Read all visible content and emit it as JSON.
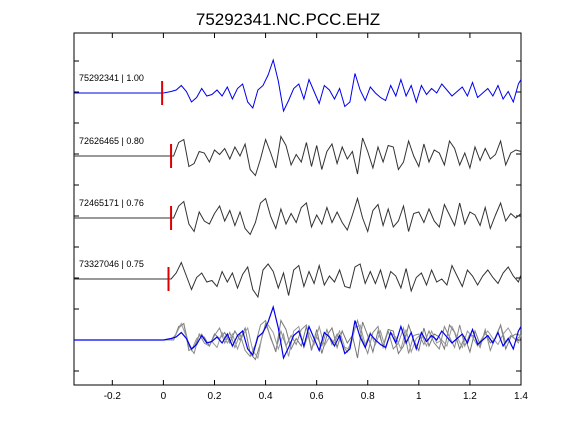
{
  "chart_data": {
    "type": "line",
    "title": "75292341.NC.PCC.EHZ",
    "xlabel": "",
    "ylabel": "",
    "xlim": [
      -0.35,
      1.4
    ],
    "x_ticks": [
      "-0.2",
      "0",
      "0.2",
      "0.4",
      "0.6",
      "0.8",
      "1",
      "1.2",
      "1.4"
    ],
    "x_tick_values": [
      -0.2,
      0,
      0.2,
      0.4,
      0.6,
      0.8,
      1.0,
      1.2,
      1.4
    ],
    "grid": false,
    "colors": {
      "master": "#0000ee",
      "other": "#333333",
      "pick": "#dd0000",
      "overlay_gray": "#777777"
    },
    "series": [
      {
        "name": "75292341 | 1.00",
        "color": "#0000ee",
        "pick_time": -0.005,
        "x": [
          -0.35,
          0.0,
          0.03,
          0.05,
          0.07,
          0.09,
          0.11,
          0.13,
          0.15,
          0.17,
          0.19,
          0.21,
          0.23,
          0.25,
          0.27,
          0.29,
          0.31,
          0.33,
          0.35,
          0.37,
          0.39,
          0.41,
          0.43,
          0.45,
          0.47,
          0.49,
          0.51,
          0.53,
          0.55,
          0.57,
          0.59,
          0.61,
          0.63,
          0.65,
          0.67,
          0.69,
          0.71,
          0.73,
          0.75,
          0.77,
          0.79,
          0.81,
          0.83,
          0.85,
          0.87,
          0.89,
          0.91,
          0.93,
          0.95,
          0.97,
          0.99,
          1.01,
          1.03,
          1.05,
          1.07,
          1.09,
          1.11,
          1.13,
          1.15,
          1.17,
          1.19,
          1.21,
          1.23,
          1.25,
          1.27,
          1.29,
          1.31,
          1.33,
          1.35,
          1.37,
          1.39,
          1.4
        ],
        "y": [
          0,
          0,
          0.1,
          0.2,
          0.5,
          0.1,
          -0.6,
          -0.3,
          0.3,
          -0.2,
          -0.1,
          0.2,
          -0.2,
          0.4,
          -0.4,
          0.3,
          0.6,
          -0.6,
          -1.0,
          0.2,
          0.5,
          1.2,
          2.2,
          0.8,
          -1.2,
          -0.5,
          0.3,
          0.6,
          -0.4,
          0.9,
          0.1,
          -0.7,
          0.5,
          0.2,
          -0.4,
          0.3,
          -0.9,
          -0.6,
          1.3,
          0.2,
          -0.5,
          0.4,
          0.0,
          -0.3,
          -0.5,
          0.5,
          -0.2,
          0.9,
          -0.2,
          0.5,
          -0.6,
          0.5,
          -0.1,
          0.3,
          0.0,
          0.6,
          0.2,
          -0.2,
          0.1,
          0.4,
          -0.2,
          0.7,
          -0.3,
          0.0,
          0.3,
          -0.2,
          0.5,
          -0.4,
          0.1,
          -0.6,
          0.6,
          0.9
        ]
      },
      {
        "name": "72626465 | 0.80",
        "color": "#333333",
        "pick_time": 0.03,
        "x": [
          -0.35,
          0.04,
          0.06,
          0.08,
          0.1,
          0.12,
          0.14,
          0.16,
          0.18,
          0.2,
          0.22,
          0.24,
          0.26,
          0.28,
          0.3,
          0.32,
          0.34,
          0.36,
          0.38,
          0.4,
          0.42,
          0.44,
          0.46,
          0.48,
          0.5,
          0.52,
          0.54,
          0.56,
          0.58,
          0.6,
          0.62,
          0.64,
          0.66,
          0.68,
          0.7,
          0.72,
          0.74,
          0.76,
          0.78,
          0.8,
          0.82,
          0.84,
          0.86,
          0.88,
          0.9,
          0.92,
          0.94,
          0.96,
          0.98,
          1.0,
          1.02,
          1.04,
          1.06,
          1.08,
          1.1,
          1.12,
          1.14,
          1.16,
          1.18,
          1.2,
          1.22,
          1.24,
          1.26,
          1.28,
          1.3,
          1.32,
          1.34,
          1.36,
          1.38,
          1.4
        ],
        "y": [
          0,
          0,
          0.9,
          1.1,
          -0.7,
          -0.5,
          0.3,
          0.2,
          -0.4,
          0.4,
          0.1,
          0.5,
          -0.2,
          0.6,
          0.0,
          0.8,
          -0.9,
          -1.3,
          -0.2,
          1.1,
          0.2,
          -0.8,
          1.3,
          0.7,
          -0.6,
          0.1,
          -0.4,
          0.9,
          -0.7,
          0.7,
          -0.9,
          0.3,
          0.8,
          -0.5,
          0.6,
          -0.2,
          0.3,
          -1.2,
          1.2,
          0.3,
          -0.8,
          0.6,
          -0.4,
          0.7,
          0.6,
          -0.9,
          -0.4,
          1.0,
          0.0,
          -0.7,
          0.8,
          -0.4,
          0.4,
          0.2,
          -0.6,
          1.0,
          0.5,
          -0.6,
          0.2,
          -0.8,
          0.6,
          -0.3,
          0.5,
          -0.2,
          0.1,
          1.0,
          -0.6,
          0.2,
          0.4,
          0.3
        ]
      },
      {
        "name": "72465171 | 0.76",
        "color": "#333333",
        "pick_time": 0.03,
        "x": [
          -0.35,
          0.04,
          0.06,
          0.08,
          0.1,
          0.12,
          0.14,
          0.16,
          0.18,
          0.2,
          0.22,
          0.24,
          0.26,
          0.28,
          0.3,
          0.32,
          0.34,
          0.36,
          0.38,
          0.4,
          0.42,
          0.44,
          0.46,
          0.48,
          0.5,
          0.52,
          0.54,
          0.56,
          0.58,
          0.6,
          0.62,
          0.64,
          0.66,
          0.68,
          0.7,
          0.72,
          0.74,
          0.76,
          0.78,
          0.8,
          0.82,
          0.84,
          0.86,
          0.88,
          0.9,
          0.92,
          0.94,
          0.96,
          0.98,
          1.0,
          1.02,
          1.04,
          1.06,
          1.08,
          1.1,
          1.12,
          1.14,
          1.16,
          1.18,
          1.2,
          1.22,
          1.24,
          1.26,
          1.28,
          1.3,
          1.32,
          1.34,
          1.36,
          1.38,
          1.4
        ],
        "y": [
          0,
          0,
          0.8,
          1.1,
          -0.4,
          -0.9,
          0.4,
          -0.2,
          -0.4,
          0.3,
          0.8,
          -0.2,
          0.5,
          -0.5,
          0.4,
          -0.7,
          -1.1,
          -0.3,
          1.0,
          1.3,
          0.1,
          -0.7,
          0.6,
          -0.4,
          0.3,
          -0.3,
          0.7,
          1.0,
          -0.6,
          0.2,
          -0.4,
          0.7,
          -0.3,
          0.4,
          -0.3,
          -0.8,
          0.2,
          1.3,
          0.0,
          -0.9,
          0.5,
          0.9,
          -0.5,
          0.6,
          -0.6,
          -0.2,
          0.8,
          -0.9,
          0.3,
          0.4,
          -0.3,
          0.6,
          -0.2,
          -0.6,
          0.9,
          0.2,
          -0.5,
          1.0,
          -0.4,
          0.4,
          0.2,
          -0.5,
          0.7,
          -0.7,
          0.2,
          1.0,
          -0.2,
          0.3,
          0.0,
          0.3
        ]
      },
      {
        "name": "73327046 | 0.75",
        "color": "#333333",
        "pick_time": 0.02,
        "x": [
          -0.35,
          0.03,
          0.05,
          0.07,
          0.09,
          0.11,
          0.13,
          0.15,
          0.17,
          0.19,
          0.21,
          0.23,
          0.25,
          0.27,
          0.29,
          0.31,
          0.33,
          0.35,
          0.37,
          0.39,
          0.41,
          0.43,
          0.45,
          0.47,
          0.49,
          0.51,
          0.53,
          0.55,
          0.57,
          0.59,
          0.61,
          0.63,
          0.65,
          0.67,
          0.69,
          0.71,
          0.73,
          0.75,
          0.77,
          0.79,
          0.81,
          0.83,
          0.85,
          0.87,
          0.89,
          0.91,
          0.93,
          0.95,
          0.97,
          0.99,
          1.01,
          1.03,
          1.05,
          1.07,
          1.09,
          1.11,
          1.13,
          1.15,
          1.17,
          1.19,
          1.21,
          1.23,
          1.25,
          1.27,
          1.29,
          1.31,
          1.33,
          1.35,
          1.37,
          1.39,
          1.4
        ],
        "y": [
          0,
          0,
          0.4,
          1.1,
          0.2,
          -0.7,
          0.1,
          0.4,
          -0.2,
          -0.1,
          -0.5,
          0.5,
          -0.2,
          0.4,
          -0.6,
          0.3,
          0.8,
          -0.7,
          -1.2,
          0.6,
          1.0,
          0.5,
          -0.6,
          0.4,
          -1.1,
          0.6,
          0.9,
          -0.5,
          0.5,
          -0.3,
          0.9,
          -0.4,
          0.2,
          -0.2,
          0.6,
          -0.5,
          -0.6,
          0.8,
          1.0,
          -0.3,
          0.5,
          -0.3,
          0.6,
          -0.6,
          0.5,
          0.2,
          -0.6,
          0.7,
          -0.8,
          0.1,
          0.4,
          -0.4,
          0.6,
          -0.2,
          0.0,
          -0.4,
          0.9,
          0.2,
          -0.5,
          0.6,
          0.2,
          -0.4,
          0.2,
          0.6,
          0.1,
          -0.3,
          0.4,
          0.8,
          0.2,
          -0.2,
          0.3
        ]
      }
    ],
    "overlay": "stacked"
  }
}
